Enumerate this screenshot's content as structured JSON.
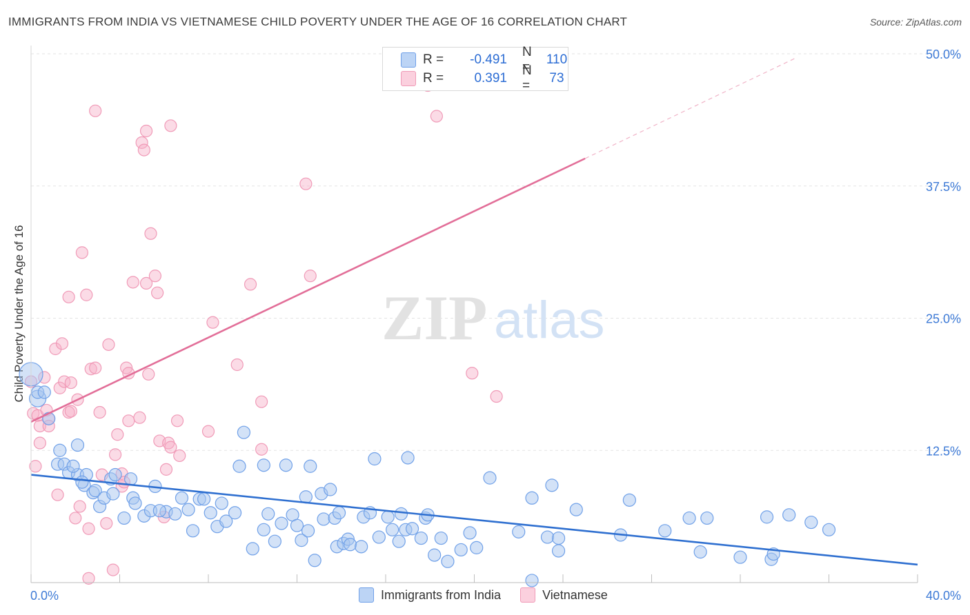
{
  "title": "IMMIGRANTS FROM INDIA VS VIETNAMESE CHILD POVERTY UNDER THE AGE OF 16 CORRELATION CHART",
  "source": "Source: ZipAtlas.com",
  "watermark": "ZIPatlas",
  "legend": {
    "rows": [
      {
        "r_label": "R =",
        "r_value": "-0.491",
        "n_label": "N =",
        "n_value": "110"
      },
      {
        "r_label": "R =",
        "r_value": "0.391",
        "n_label": "N =",
        "n_value": "73"
      }
    ]
  },
  "chart_data": {
    "type": "scatter",
    "title": "IMMIGRANTS FROM INDIA VS VIETNAMESE CHILD POVERTY UNDER THE AGE OF 16 CORRELATION CHART",
    "xlabel": "",
    "ylabel": "Child Poverty Under the Age of 16",
    "xlim": [
      0,
      40
    ],
    "ylim": [
      0,
      50
    ],
    "x_tick_labels": [
      "0.0%",
      "40.0%"
    ],
    "y_tick_labels": [
      "12.5%",
      "25.0%",
      "37.5%",
      "50.0%"
    ],
    "y_ticks": [
      12.5,
      25,
      37.5,
      50
    ],
    "legend_position": "bottom",
    "colors": {
      "india": "#6fa0e8",
      "vietnamese": "#f09ab7",
      "india_line": "#2e6fd0",
      "viet_line": "#e26e98"
    },
    "series": [
      {
        "name": "Immigrants from India",
        "trend": {
          "x": [
            0,
            40
          ],
          "y": [
            10.2,
            1.7
          ]
        },
        "points": [
          [
            0.0,
            19.7
          ],
          [
            0.3,
            17.4
          ],
          [
            0.3,
            18.0
          ],
          [
            0.6,
            18.0
          ],
          [
            0.8,
            15.5
          ],
          [
            1.2,
            11.2
          ],
          [
            1.3,
            12.5
          ],
          [
            1.5,
            11.2
          ],
          [
            1.7,
            10.4
          ],
          [
            2.1,
            10.2
          ],
          [
            2.1,
            13.0
          ],
          [
            2.4,
            9.2
          ],
          [
            2.5,
            10.2
          ],
          [
            2.8,
            8.5
          ],
          [
            2.9,
            8.7
          ],
          [
            3.1,
            7.2
          ],
          [
            3.3,
            8.0
          ],
          [
            3.6,
            9.8
          ],
          [
            3.8,
            10.2
          ],
          [
            3.7,
            8.4
          ],
          [
            4.2,
            6.1
          ],
          [
            4.5,
            9.8
          ],
          [
            4.6,
            8.0
          ],
          [
            4.7,
            7.5
          ],
          [
            5.1,
            6.3
          ],
          [
            5.4,
            6.8
          ],
          [
            5.6,
            9.1
          ],
          [
            6.1,
            6.7
          ],
          [
            5.8,
            6.8
          ],
          [
            6.5,
            6.5
          ],
          [
            6.8,
            8.0
          ],
          [
            7.1,
            6.9
          ],
          [
            7.6,
            7.9
          ],
          [
            7.3,
            4.9
          ],
          [
            7.8,
            7.9
          ],
          [
            8.1,
            6.6
          ],
          [
            8.6,
            7.5
          ],
          [
            8.4,
            5.3
          ],
          [
            8.8,
            5.8
          ],
          [
            9.2,
            6.6
          ],
          [
            9.4,
            11.0
          ],
          [
            9.6,
            14.2
          ],
          [
            10.0,
            3.2
          ],
          [
            10.5,
            11.1
          ],
          [
            10.5,
            5.0
          ],
          [
            10.7,
            6.5
          ],
          [
            11.0,
            3.9
          ],
          [
            11.3,
            5.6
          ],
          [
            11.5,
            11.1
          ],
          [
            11.8,
            6.4
          ],
          [
            12.0,
            5.4
          ],
          [
            12.2,
            4.0
          ],
          [
            12.4,
            8.1
          ],
          [
            12.5,
            4.9
          ],
          [
            12.6,
            11.0
          ],
          [
            12.8,
            2.1
          ],
          [
            13.1,
            8.4
          ],
          [
            13.2,
            6.0
          ],
          [
            13.5,
            8.8
          ],
          [
            13.7,
            6.1
          ],
          [
            13.9,
            6.6
          ],
          [
            13.8,
            3.4
          ],
          [
            14.1,
            3.7
          ],
          [
            14.3,
            4.1
          ],
          [
            14.4,
            3.6
          ],
          [
            14.9,
            3.4
          ],
          [
            15.0,
            6.2
          ],
          [
            15.3,
            6.6
          ],
          [
            15.5,
            11.7
          ],
          [
            15.7,
            4.3
          ],
          [
            16.1,
            6.2
          ],
          [
            16.3,
            5.0
          ],
          [
            16.6,
            3.9
          ],
          [
            16.9,
            5.0
          ],
          [
            17.0,
            11.8
          ],
          [
            17.2,
            5.1
          ],
          [
            17.6,
            4.2
          ],
          [
            17.8,
            6.1
          ],
          [
            17.9,
            6.4
          ],
          [
            18.2,
            2.6
          ],
          [
            18.5,
            4.2
          ],
          [
            18.8,
            2.0
          ],
          [
            19.4,
            3.1
          ],
          [
            19.8,
            4.7
          ],
          [
            20.1,
            3.3
          ],
          [
            20.7,
            9.9
          ],
          [
            22.0,
            4.8
          ],
          [
            22.6,
            8.0
          ],
          [
            23.3,
            4.3
          ],
          [
            23.5,
            9.2
          ],
          [
            23.8,
            4.2
          ],
          [
            23.8,
            3.0
          ],
          [
            24.6,
            6.9
          ],
          [
            26.6,
            4.5
          ],
          [
            27.0,
            7.8
          ],
          [
            28.6,
            4.9
          ],
          [
            29.7,
            6.1
          ],
          [
            30.2,
            2.9
          ],
          [
            30.5,
            6.1
          ],
          [
            32.0,
            2.4
          ],
          [
            33.2,
            6.2
          ],
          [
            33.4,
            2.2
          ],
          [
            33.5,
            2.7
          ],
          [
            34.2,
            6.4
          ],
          [
            35.2,
            5.7
          ],
          [
            36.0,
            5.0
          ],
          [
            22.6,
            0.2
          ],
          [
            16.7,
            6.5
          ],
          [
            2.3,
            9.5
          ],
          [
            1.9,
            11.0
          ]
        ]
      },
      {
        "name": "Vietnamese",
        "trend": {
          "x": [
            0,
            25
          ],
          "y": [
            15.2,
            40.1
          ]
        },
        "trend_ext": {
          "x": [
            25,
            34.5
          ],
          "y": [
            40.1,
            49.6
          ]
        },
        "points": [
          [
            0.0,
            19.0
          ],
          [
            0.1,
            16.0
          ],
          [
            0.3,
            15.8
          ],
          [
            0.4,
            14.8
          ],
          [
            0.4,
            13.2
          ],
          [
            0.6,
            19.4
          ],
          [
            0.7,
            16.3
          ],
          [
            0.8,
            15.5
          ],
          [
            0.8,
            14.8
          ],
          [
            1.1,
            22.1
          ],
          [
            1.2,
            8.3
          ],
          [
            1.3,
            18.4
          ],
          [
            1.4,
            22.6
          ],
          [
            1.5,
            19.0
          ],
          [
            1.7,
            16.1
          ],
          [
            1.7,
            27.0
          ],
          [
            1.8,
            16.2
          ],
          [
            1.8,
            18.9
          ],
          [
            2.0,
            6.1
          ],
          [
            2.1,
            17.3
          ],
          [
            2.2,
            7.2
          ],
          [
            2.3,
            31.2
          ],
          [
            2.5,
            27.2
          ],
          [
            2.6,
            5.1
          ],
          [
            2.6,
            0.4
          ],
          [
            2.7,
            20.2
          ],
          [
            2.9,
            44.6
          ],
          [
            2.9,
            20.3
          ],
          [
            3.1,
            16.1
          ],
          [
            3.2,
            10.2
          ],
          [
            3.4,
            5.6
          ],
          [
            3.5,
            22.5
          ],
          [
            3.7,
            1.2
          ],
          [
            3.9,
            14.0
          ],
          [
            4.1,
            10.3
          ],
          [
            4.1,
            9.1
          ],
          [
            4.2,
            9.5
          ],
          [
            4.3,
            20.3
          ],
          [
            4.4,
            15.3
          ],
          [
            4.4,
            19.8
          ],
          [
            4.6,
            28.4
          ],
          [
            4.9,
            15.6
          ],
          [
            5.0,
            41.6
          ],
          [
            5.1,
            40.9
          ],
          [
            5.2,
            42.7
          ],
          [
            5.2,
            28.3
          ],
          [
            5.3,
            19.7
          ],
          [
            5.4,
            33.0
          ],
          [
            5.6,
            29.0
          ],
          [
            5.7,
            27.4
          ],
          [
            5.8,
            13.4
          ],
          [
            6.0,
            6.2
          ],
          [
            6.1,
            10.7
          ],
          [
            6.2,
            13.2
          ],
          [
            6.3,
            12.8
          ],
          [
            6.3,
            43.2
          ],
          [
            6.6,
            15.3
          ],
          [
            6.7,
            12.0
          ],
          [
            8.2,
            24.6
          ],
          [
            9.3,
            20.6
          ],
          [
            9.9,
            28.2
          ],
          [
            10.4,
            17.1
          ],
          [
            10.4,
            12.6
          ],
          [
            12.4,
            37.7
          ],
          [
            12.6,
            29.0
          ],
          [
            17.9,
            47.0
          ],
          [
            18.0,
            47.7
          ],
          [
            18.3,
            44.1
          ],
          [
            21.0,
            17.6
          ],
          [
            19.9,
            19.8
          ],
          [
            8.0,
            14.3
          ],
          [
            3.8,
            12.1
          ],
          [
            0.2,
            11.0
          ]
        ]
      }
    ]
  },
  "bottom_legend": [
    {
      "label": "Immigrants from India"
    },
    {
      "label": "Vietnamese"
    }
  ]
}
